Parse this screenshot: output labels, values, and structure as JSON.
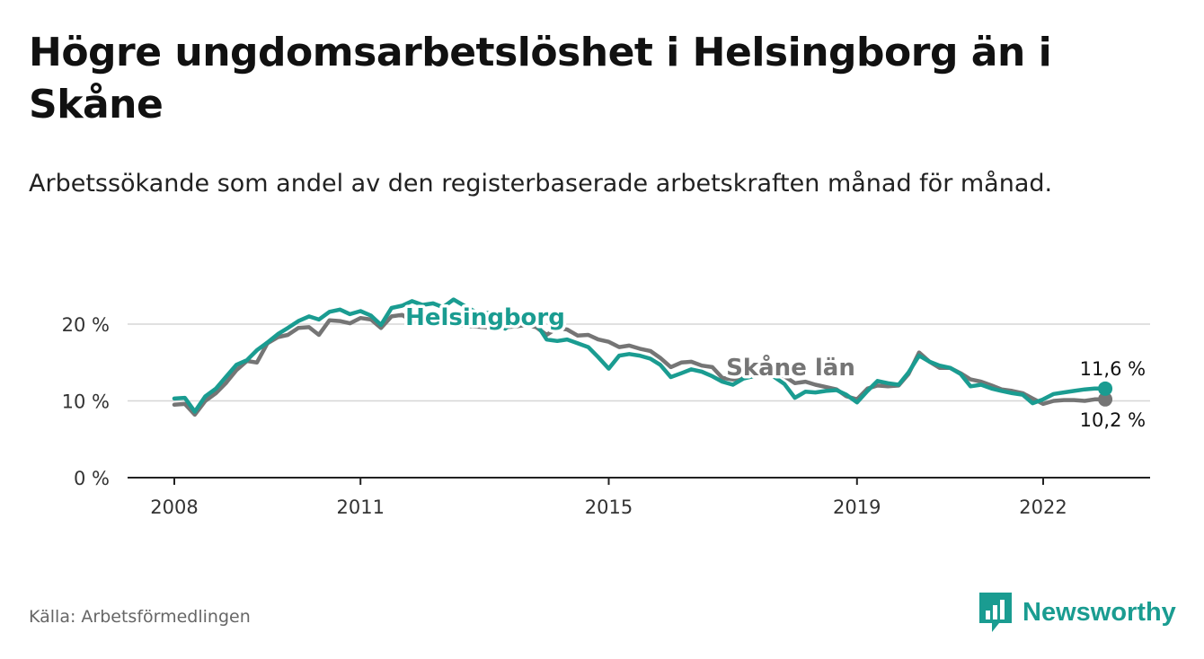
{
  "title": "Högre ungdomsarbetslöshet i Helsingborg än i Skåne",
  "subtitle": "Arbetssökande som andel av den registerbaserade arbetskraften månad för månad.",
  "source": "Källa: Arbetsförmedlingen",
  "brand": {
    "name": "Newsworthy",
    "icon": "newsworthy-logo-icon",
    "color": "#1a9c91"
  },
  "chart_data": {
    "type": "line",
    "title": "Högre ungdomsarbetslöshet i Helsingborg än i Skåne",
    "xlabel": "",
    "ylabel": "",
    "x_range": [
      2007.3,
      2023.5
    ],
    "ylim": [
      0,
      20
    ],
    "y_ticks": [
      {
        "value": 0,
        "label": "0 %"
      },
      {
        "value": 10,
        "label": "10 %"
      },
      {
        "value": 20,
        "label": "20 %"
      }
    ],
    "x_ticks": [
      {
        "value": 2008,
        "label": "2008"
      },
      {
        "value": 2011,
        "label": "2011"
      },
      {
        "value": 2015,
        "label": "2015"
      },
      {
        "value": 2019,
        "label": "2019"
      },
      {
        "value": 2022,
        "label": "2022"
      }
    ],
    "grid": true,
    "series": [
      {
        "name": "Skåne län",
        "label": "Skåne län",
        "color": "#757575",
        "end_label": "10,2 %",
        "x": [
          2008.0,
          2008.17,
          2008.33,
          2008.5,
          2008.67,
          2008.83,
          2009.0,
          2009.17,
          2009.33,
          2009.5,
          2009.67,
          2009.83,
          2010.0,
          2010.17,
          2010.33,
          2010.5,
          2010.67,
          2010.83,
          2011.0,
          2011.17,
          2011.33,
          2011.5,
          2011.67,
          2011.83,
          2012.0,
          2012.17,
          2012.33,
          2012.5,
          2012.67,
          2012.83,
          2013.0,
          2013.17,
          2013.33,
          2013.5,
          2013.67,
          2013.83,
          2014.0,
          2014.17,
          2014.33,
          2014.5,
          2014.67,
          2014.83,
          2015.0,
          2015.17,
          2015.33,
          2015.5,
          2015.67,
          2015.83,
          2016.0,
          2016.17,
          2016.33,
          2016.5,
          2016.67,
          2016.83,
          2017.0,
          2017.17,
          2017.33,
          2017.5,
          2017.67,
          2017.83,
          2018.0,
          2018.17,
          2018.33,
          2018.5,
          2018.67,
          2018.83,
          2019.0,
          2019.17,
          2019.33,
          2019.5,
          2019.67,
          2019.83,
          2020.0,
          2020.17,
          2020.33,
          2020.5,
          2020.67,
          2020.83,
          2021.0,
          2021.17,
          2021.33,
          2021.5,
          2021.67,
          2021.83,
          2022.0,
          2022.17,
          2022.33,
          2022.5,
          2022.67,
          2022.83,
          2023.0
        ],
        "values": [
          9.5,
          9.6,
          8.2,
          10.0,
          11.0,
          12.3,
          14.0,
          15.2,
          15.0,
          17.5,
          18.3,
          18.6,
          19.5,
          19.6,
          18.6,
          20.5,
          20.4,
          20.1,
          20.8,
          20.6,
          19.5,
          21.0,
          21.2,
          20.4,
          20.2,
          20.3,
          19.8,
          20.1,
          19.8,
          19.7,
          19.6,
          19.4,
          19.6,
          19.7,
          19.9,
          19.6,
          18.6,
          19.5,
          19.3,
          18.5,
          18.6,
          18.0,
          17.7,
          17.0,
          17.2,
          16.8,
          16.5,
          15.6,
          14.4,
          15.0,
          15.1,
          14.6,
          14.4,
          13.0,
          12.8,
          13.0,
          13.2,
          13.6,
          13.5,
          13.2,
          12.3,
          12.5,
          12.1,
          11.8,
          11.5,
          10.6,
          10.2,
          11.6,
          12.0,
          11.9,
          12.0,
          13.5,
          16.3,
          15.1,
          14.3,
          14.3,
          13.6,
          12.8,
          12.5,
          12.0,
          11.5,
          11.3,
          11.0,
          10.3,
          9.6,
          10.0,
          10.1,
          10.1,
          10.0,
          10.2,
          10.2
        ]
      },
      {
        "name": "Helsingborg",
        "label": "Helsingborg",
        "color": "#1a9c91",
        "end_label": "11,6 %",
        "x": [
          2008.0,
          2008.17,
          2008.33,
          2008.5,
          2008.67,
          2008.83,
          2009.0,
          2009.17,
          2009.33,
          2009.5,
          2009.67,
          2009.83,
          2010.0,
          2010.17,
          2010.33,
          2010.5,
          2010.67,
          2010.83,
          2011.0,
          2011.17,
          2011.33,
          2011.5,
          2011.67,
          2011.83,
          2012.0,
          2012.17,
          2012.33,
          2012.5,
          2012.67,
          2012.83,
          2013.0,
          2013.17,
          2013.33,
          2013.5,
          2013.67,
          2013.83,
          2014.0,
          2014.17,
          2014.33,
          2014.5,
          2014.67,
          2014.83,
          2015.0,
          2015.17,
          2015.33,
          2015.5,
          2015.67,
          2015.83,
          2016.0,
          2016.17,
          2016.33,
          2016.5,
          2016.67,
          2016.83,
          2017.0,
          2017.17,
          2017.33,
          2017.5,
          2017.67,
          2017.83,
          2018.0,
          2018.17,
          2018.33,
          2018.5,
          2018.67,
          2018.83,
          2019.0,
          2019.17,
          2019.33,
          2019.5,
          2019.67,
          2019.83,
          2020.0,
          2020.17,
          2020.33,
          2020.5,
          2020.67,
          2020.83,
          2021.0,
          2021.17,
          2021.33,
          2021.5,
          2021.67,
          2021.83,
          2022.0,
          2022.17,
          2022.33,
          2022.5,
          2022.67,
          2022.83,
          2023.0
        ],
        "values": [
          10.3,
          10.4,
          8.6,
          10.6,
          11.6,
          13.1,
          14.7,
          15.3,
          16.6,
          17.6,
          18.7,
          19.5,
          20.4,
          21.0,
          20.6,
          21.6,
          21.9,
          21.3,
          21.7,
          21.1,
          19.9,
          22.1,
          22.4,
          23.0,
          22.5,
          22.7,
          22.2,
          23.2,
          22.4,
          21.7,
          21.4,
          21.6,
          19.4,
          20.4,
          20.6,
          20.1,
          18.0,
          17.8,
          18.0,
          17.5,
          17.0,
          15.7,
          14.2,
          15.9,
          16.1,
          15.9,
          15.5,
          14.7,
          13.1,
          13.6,
          14.1,
          13.8,
          13.2,
          12.5,
          12.1,
          12.9,
          13.2,
          13.7,
          13.1,
          12.2,
          10.4,
          11.2,
          11.1,
          11.3,
          11.4,
          10.8,
          9.8,
          11.3,
          12.6,
          12.3,
          12.1,
          13.7,
          15.9,
          15.1,
          14.6,
          14.3,
          13.5,
          11.9,
          12.1,
          11.6,
          11.3,
          11.0,
          10.8,
          9.7,
          10.2,
          10.9,
          11.1,
          11.3,
          11.5,
          11.6,
          11.6
        ]
      }
    ]
  }
}
